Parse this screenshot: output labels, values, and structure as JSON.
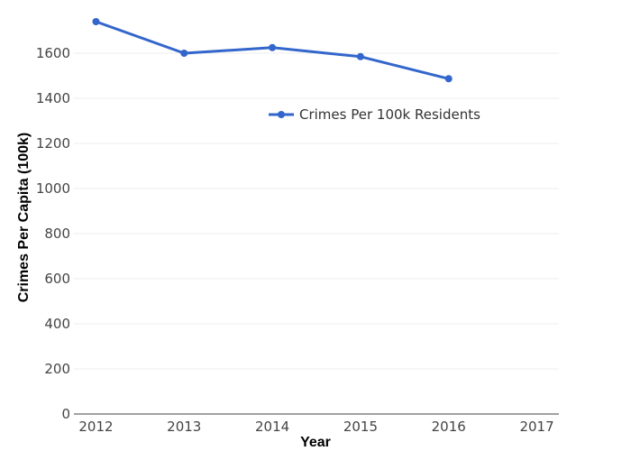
{
  "chart_data": {
    "type": "line",
    "title": "",
    "xlabel": "Year",
    "ylabel": "Crimes Per Capita (100k)",
    "x_ticks": [
      "2012",
      "2013",
      "2014",
      "2015",
      "2016",
      "2017"
    ],
    "y_ticks": [
      "0",
      "200",
      "400",
      "600",
      "800",
      "1000",
      "1200",
      "1400",
      "1600"
    ],
    "xlim": [
      2011.75,
      2017.25
    ],
    "ylim": [
      0,
      1740
    ],
    "grid": true,
    "legend": "top-right",
    "series": [
      {
        "name": "Crimes Per 100k Residents",
        "color": "#3366cc",
        "x": [
          2012,
          2013,
          2014,
          2015,
          2016
        ],
        "values": [
          1740,
          1600,
          1625,
          1585,
          1487
        ]
      }
    ]
  }
}
